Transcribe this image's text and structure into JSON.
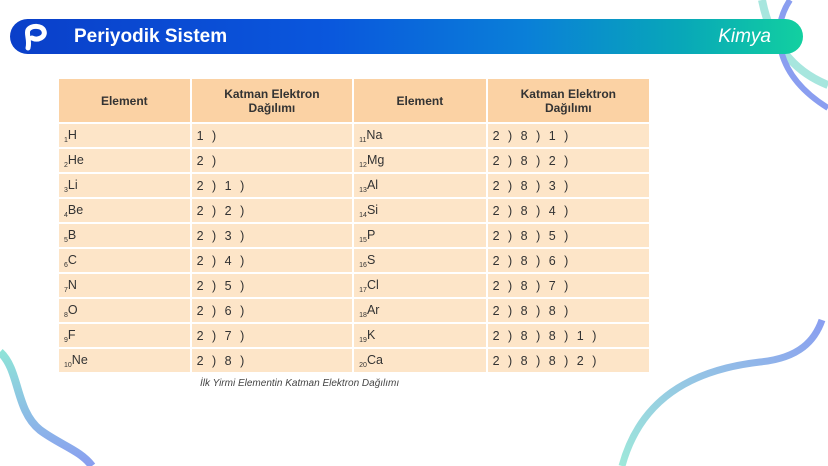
{
  "header": {
    "title": "Periyodik Sistem",
    "subject": "Kimya",
    "logo_icon": "p-logo-icon"
  },
  "table": {
    "headers": [
      "Element",
      "Katman Elektron Dağılımı",
      "Element",
      "Katman Elektron Dağılımı"
    ],
    "rows": [
      {
        "n1": "1",
        "s1": "H",
        "c1": "1 )",
        "n2": "11",
        "s2": "Na",
        "c2": "2 ) 8 ) 1 )"
      },
      {
        "n1": "2",
        "s1": "He",
        "c1": "2 )",
        "n2": "12",
        "s2": "Mg",
        "c2": "2 ) 8 ) 2 )"
      },
      {
        "n1": "3",
        "s1": "Li",
        "c1": "2 ) 1 )",
        "n2": "13",
        "s2": "Al",
        "c2": "2 ) 8 ) 3 )"
      },
      {
        "n1": "4",
        "s1": "Be",
        "c1": "2 ) 2 )",
        "n2": "14",
        "s2": "Si",
        "c2": "2 ) 8 ) 4 )"
      },
      {
        "n1": "5",
        "s1": "B",
        "c1": "2 ) 3 )",
        "n2": "15",
        "s2": "P",
        "c2": "2 ) 8 ) 5 )"
      },
      {
        "n1": "6",
        "s1": "C",
        "c1": "2 ) 4 )",
        "n2": "16",
        "s2": "S",
        "c2": "2 ) 8 ) 6 )"
      },
      {
        "n1": "7",
        "s1": "N",
        "c1": "2 ) 5 )",
        "n2": "17",
        "s2": "Cl",
        "c2": "2 ) 8 ) 7 )"
      },
      {
        "n1": "8",
        "s1": "O",
        "c1": "2 ) 6 )",
        "n2": "18",
        "s2": "Ar",
        "c2": "2 ) 8 ) 8 )"
      },
      {
        "n1": "9",
        "s1": "F",
        "c1": "2 ) 7 )",
        "n2": "19",
        "s2": "K",
        "c2": "2 ) 8 ) 8 ) 1 )"
      },
      {
        "n1": "10",
        "s1": "Ne",
        "c1": "2 ) 8 )",
        "n2": "20",
        "s2": "Ca",
        "c2": "2 ) 8 ) 8 ) 2 )"
      }
    ]
  },
  "caption": "İlk Yirmi Elementin Katman Elektron Dağılımı",
  "colors": {
    "header_bg": "#fbd2a4",
    "row_bg": "#fde5c8",
    "banner_start": "#0a3fc9",
    "banner_end": "#12d0a0"
  }
}
